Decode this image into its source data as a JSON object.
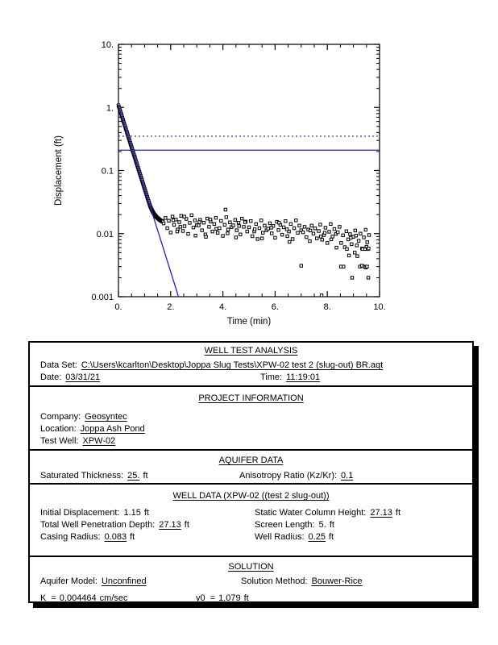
{
  "chart_data": {
    "type": "scatter",
    "title": "",
    "xlabel": "Time (min)",
    "ylabel": "Displacement (ft)",
    "x_range": [
      0,
      10
    ],
    "y_range": [
      0.001,
      10
    ],
    "y_scale": "log",
    "x_minor_step": 0.5,
    "x_ticks": [
      {
        "v": 0,
        "label": "0."
      },
      {
        "v": 2,
        "label": "2."
      },
      {
        "v": 4,
        "label": "4."
      },
      {
        "v": 6,
        "label": "6."
      },
      {
        "v": 8,
        "label": "8."
      },
      {
        "v": 10,
        "label": "10."
      }
    ],
    "y_ticks": [
      {
        "v": 10,
        "label": "10."
      },
      {
        "v": 1,
        "label": "1."
      },
      {
        "v": 0.1,
        "label": "0.1"
      },
      {
        "v": 0.01,
        "label": "0.01"
      },
      {
        "v": 0.001,
        "label": "0.001"
      }
    ],
    "line_color": "#2222cc",
    "marker": {
      "shape": "open-square",
      "color": "#000000",
      "size": 3.4
    },
    "ref_lines": [
      {
        "style": "dotted",
        "y": 0.35
      },
      {
        "style": "solid",
        "y": 0.21
      }
    ],
    "fit_line": {
      "name": "Bouwer-Rice",
      "y0": 1.079,
      "decades_per_min": 1.319
    },
    "points": [
      [
        0,
        1.08
      ],
      [
        0.017,
        1.025
      ],
      [
        0.033,
        0.975
      ],
      [
        0.05,
        0.928
      ],
      [
        0.067,
        0.88
      ],
      [
        0.083,
        0.838
      ],
      [
        0.1,
        0.796
      ],
      [
        0.117,
        0.757
      ],
      [
        0.133,
        0.72
      ],
      [
        0.15,
        0.684
      ],
      [
        0.167,
        0.65
      ],
      [
        0.183,
        0.619
      ],
      [
        0.2,
        0.588
      ],
      [
        0.217,
        0.559
      ],
      [
        0.233,
        0.532
      ],
      [
        0.25,
        0.505
      ],
      [
        0.267,
        0.479
      ],
      [
        0.283,
        0.456
      ],
      [
        0.3,
        0.434
      ],
      [
        0.317,
        0.413
      ],
      [
        0.333,
        0.393
      ],
      [
        0.35,
        0.373
      ],
      [
        0.367,
        0.354
      ],
      [
        0.383,
        0.337
      ],
      [
        0.4,
        0.32
      ],
      [
        0.417,
        0.305
      ],
      [
        0.433,
        0.29
      ],
      [
        0.45,
        0.275
      ],
      [
        0.467,
        0.261
      ],
      [
        0.483,
        0.248
      ],
      [
        0.5,
        0.236
      ],
      [
        0.517,
        0.225
      ],
      [
        0.533,
        0.214
      ],
      [
        0.55,
        0.203
      ],
      [
        0.567,
        0.193
      ],
      [
        0.583,
        0.183
      ],
      [
        0.6,
        0.174
      ],
      [
        0.617,
        0.166
      ],
      [
        0.633,
        0.158
      ],
      [
        0.65,
        0.15
      ],
      [
        0.667,
        0.142
      ],
      [
        0.683,
        0.135
      ],
      [
        0.7,
        0.129
      ],
      [
        0.717,
        0.122
      ],
      [
        0.733,
        0.116
      ],
      [
        0.75,
        0.11
      ],
      [
        0.767,
        0.105
      ],
      [
        0.783,
        0.1
      ],
      [
        0.8,
        0.095
      ],
      [
        0.817,
        0.0903
      ],
      [
        0.833,
        0.086
      ],
      [
        0.85,
        0.0817
      ],
      [
        0.867,
        0.0776
      ],
      [
        0.883,
        0.0738
      ],
      [
        0.9,
        0.0702
      ],
      [
        0.917,
        0.0667
      ],
      [
        0.933,
        0.0635
      ],
      [
        0.95,
        0.0603
      ],
      [
        0.967,
        0.0573
      ],
      [
        0.983,
        0.0545
      ],
      [
        1,
        0.0518
      ],
      [
        1.017,
        0.0493
      ],
      [
        1.033,
        0.0469
      ],
      [
        1.05,
        0.0445
      ],
      [
        1.067,
        0.0423
      ],
      [
        1.083,
        0.0403
      ],
      [
        1.1,
        0.0383
      ],
      [
        1.117,
        0.0364
      ],
      [
        1.133,
        0.0347
      ],
      [
        1.15,
        0.033
      ],
      [
        1.167,
        0.0313
      ],
      [
        1.183,
        0.0298
      ],
      [
        1.2,
        0.0284
      ],
      [
        1.217,
        0.0272
      ],
      [
        1.233,
        0.0262
      ],
      [
        1.25,
        0.0252
      ],
      [
        1.267,
        0.0243
      ],
      [
        1.283,
        0.0235
      ],
      [
        1.3,
        0.0228
      ],
      [
        1.317,
        0.0221
      ],
      [
        1.333,
        0.0215
      ],
      [
        1.35,
        0.0209
      ],
      [
        1.367,
        0.0204
      ],
      [
        1.383,
        0.02
      ],
      [
        1.4,
        0.0196
      ],
      [
        1.417,
        0.0192
      ],
      [
        1.433,
        0.0188
      ],
      [
        1.45,
        0.0185
      ],
      [
        1.467,
        0.0182
      ],
      [
        1.483,
        0.0179
      ],
      [
        1.5,
        0.0176
      ],
      [
        1.517,
        0.0174
      ],
      [
        1.533,
        0.0171
      ],
      [
        1.55,
        0.0169
      ],
      [
        1.567,
        0.0167
      ],
      [
        1.583,
        0.0165
      ],
      [
        1.6,
        0.0163
      ],
      [
        1.617,
        0.0161
      ],
      [
        1.633,
        0.016
      ],
      [
        1.65,
        0.0158
      ],
      [
        1.667,
        0.0157
      ],
      [
        1.683,
        0.0156
      ],
      [
        1.7,
        0.0155
      ],
      [
        1.73,
        0.0145
      ],
      [
        1.8,
        0.0177
      ],
      [
        1.87,
        0.0122
      ],
      [
        1.93,
        0.016
      ],
      [
        2,
        0.0104
      ],
      [
        2.07,
        0.0186
      ],
      [
        2.13,
        0.0138
      ],
      [
        2.2,
        0.0167
      ],
      [
        2.27,
        0.0116
      ],
      [
        2.33,
        0.0152
      ],
      [
        2.4,
        0.0191
      ],
      [
        2.47,
        0.011
      ],
      [
        2.53,
        0.0131
      ],
      [
        2.6,
        0.0171
      ],
      [
        2.67,
        0.0099
      ],
      [
        2.73,
        0.0148
      ],
      [
        2.8,
        0.0196
      ],
      [
        2.87,
        0.0125
      ],
      [
        2.93,
        0.0162
      ],
      [
        3,
        0.0136
      ],
      [
        3.07,
        0.0135
      ],
      [
        3.13,
        0.0165
      ],
      [
        3.2,
        0.0113
      ],
      [
        3.27,
        0.0149
      ],
      [
        3.33,
        0.0097
      ],
      [
        3.4,
        0.0173
      ],
      [
        3.47,
        0.0128
      ],
      [
        3.53,
        0.0155
      ],
      [
        3.6,
        0.0108
      ],
      [
        3.67,
        0.0142
      ],
      [
        3.73,
        0.0178
      ],
      [
        3.8,
        0.0103
      ],
      [
        3.87,
        0.0122
      ],
      [
        3.93,
        0.0159
      ],
      [
        4,
        0.0092
      ],
      [
        4.07,
        0.0138
      ],
      [
        4.13,
        0.0182
      ],
      [
        4.2,
        0.0116
      ],
      [
        4.27,
        0.0151
      ],
      [
        4.33,
        0.0127
      ],
      [
        4.4,
        0.0135
      ],
      [
        4.47,
        0.0165
      ],
      [
        4.53,
        0.0113
      ],
      [
        4.6,
        0.0149
      ],
      [
        4.67,
        0.0097
      ],
      [
        4.73,
        0.0173
      ],
      [
        4.8,
        0.0128
      ],
      [
        4.87,
        0.0155
      ],
      [
        4.93,
        0.0108
      ],
      [
        5,
        0.0126
      ],
      [
        5.07,
        0.0158
      ],
      [
        5.13,
        0.0091
      ],
      [
        5.2,
        0.0108
      ],
      [
        5.27,
        0.0142
      ],
      [
        5.33,
        0.0082
      ],
      [
        5.4,
        0.0122
      ],
      [
        5.47,
        0.0162
      ],
      [
        5.53,
        0.0103
      ],
      [
        5.6,
        0.0134
      ],
      [
        5.67,
        0.0113
      ],
      [
        5.73,
        0.012
      ],
      [
        5.8,
        0.0146
      ],
      [
        5.87,
        0.0101
      ],
      [
        5.93,
        0.0132
      ],
      [
        6,
        0.0086
      ],
      [
        6.07,
        0.0154
      ],
      [
        6.13,
        0.0114
      ],
      [
        6.2,
        0.0138
      ],
      [
        6.27,
        0.0096
      ],
      [
        6.33,
        0.0126
      ],
      [
        6.4,
        0.0158
      ],
      [
        6.47,
        0.0091
      ],
      [
        6.53,
        0.0108
      ],
      [
        6.6,
        0.0142
      ],
      [
        6.67,
        0.0082
      ],
      [
        6.73,
        0.0122
      ],
      [
        6.8,
        0.0162
      ],
      [
        6.87,
        0.0103
      ],
      [
        6.93,
        0.0134
      ],
      [
        7,
        0.0113
      ],
      [
        7.07,
        0.0105
      ],
      [
        7.13,
        0.0128
      ],
      [
        7.2,
        0.0088
      ],
      [
        7.27,
        0.0116
      ],
      [
        7.33,
        0.0076
      ],
      [
        7.4,
        0.0134
      ],
      [
        7.47,
        0.01
      ],
      [
        7.53,
        0.0121
      ],
      [
        7.6,
        0.0084
      ],
      [
        7.67,
        0.011
      ],
      [
        7.73,
        0.0139
      ],
      [
        7.8,
        0.008
      ],
      [
        7.87,
        0.0095
      ],
      [
        7.93,
        0.0124
      ],
      [
        8,
        0.0071
      ],
      [
        8.07,
        0.0107
      ],
      [
        8.13,
        0.0142
      ],
      [
        8.2,
        0.009
      ],
      [
        8.27,
        0.0118
      ],
      [
        8.33,
        0.0099
      ],
      [
        8.4,
        0.0105
      ],
      [
        8.47,
        0.0128
      ],
      [
        8.53,
        0.0071
      ],
      [
        8.6,
        0.0094
      ],
      [
        8.67,
        0.0061
      ],
      [
        8.73,
        0.0109
      ],
      [
        8.8,
        0.0081
      ],
      [
        8.87,
        0.0098
      ],
      [
        8.93,
        0.0068
      ],
      [
        9,
        0.0089
      ],
      [
        9.07,
        0.0112
      ],
      [
        9.13,
        0.0065
      ],
      [
        9.2,
        0.0077
      ],
      [
        9.27,
        0.01
      ],
      [
        9.33,
        0.0058
      ],
      [
        9.4,
        0.0087
      ],
      [
        9.47,
        0.0115
      ],
      [
        9.53,
        0.0073
      ],
      [
        9.6,
        0.0095
      ],
      [
        2.1,
        0.0163
      ],
      [
        2.25,
        0.0108
      ],
      [
        2.37,
        0.0128
      ],
      [
        2.52,
        0.0186
      ],
      [
        2.95,
        0.0093
      ],
      [
        3.1,
        0.0152
      ],
      [
        3.35,
        0.0089
      ],
      [
        3.52,
        0.0168
      ],
      [
        3.75,
        0.0119
      ],
      [
        4.1,
        0.024
      ],
      [
        4.18,
        0.0101
      ],
      [
        4.5,
        0.0087
      ],
      [
        4.62,
        0.0132
      ],
      [
        4.85,
        0.0152
      ],
      [
        5.22,
        0.0117
      ],
      [
        5.5,
        0.0084
      ],
      [
        5.85,
        0.0124
      ],
      [
        6.15,
        0.0149
      ],
      [
        6.45,
        0.0117
      ],
      [
        6.55,
        0.0074
      ],
      [
        7,
        0.0031
      ],
      [
        7.35,
        0.0112
      ],
      [
        7.75,
        0.009
      ],
      [
        7.78,
        0.00105
      ],
      [
        7.9,
        0.0103
      ],
      [
        8.15,
        0.0081
      ],
      [
        8.35,
        0.006
      ],
      [
        8.52,
        0.003
      ],
      [
        8.62,
        0.003
      ],
      [
        8.75,
        0.0057
      ],
      [
        8.83,
        0.0045
      ],
      [
        8.9,
        0.0086
      ],
      [
        8.95,
        0.002
      ],
      [
        9.05,
        0.005
      ],
      [
        9.1,
        0.0093
      ],
      [
        9.15,
        0.0044
      ],
      [
        9.25,
        0.003
      ],
      [
        9.33,
        0.0031
      ],
      [
        9.35,
        0.0057
      ],
      [
        9.42,
        0.003
      ],
      [
        9.45,
        0.0057
      ],
      [
        9.47,
        0.0029
      ],
      [
        9.5,
        0.0062
      ],
      [
        9.52,
        0.003
      ],
      [
        9.55,
        0.0057
      ],
      [
        9.57,
        0.002
      ],
      [
        9.58,
        0.0058
      ]
    ]
  },
  "table": {
    "s1": {
      "title": "WELL TEST ANALYSIS",
      "dataset_label": "Data Set:",
      "dataset_value": "C:\\Users\\kcarlton\\Desktop\\Joppa Slug Tests\\XPW-02 test 2 (slug-out) BR.aqt",
      "date_label": "Date:",
      "date_value": "03/31/21",
      "time_label": "Time:",
      "time_value": "11:19:01"
    },
    "s2": {
      "title": "PROJECT INFORMATION",
      "company_label": "Company:",
      "company_value": "Geosyntec",
      "location_label": "Location:",
      "location_value": "Joppa Ash Pond",
      "testwell_label": "Test Well:",
      "testwell_value": "XPW-02"
    },
    "s3": {
      "title": "AQUIFER DATA",
      "satthick_label": "Saturated Thickness:",
      "satthick_value": "25.",
      "satthick_suffix": "ft",
      "aniso_label": "Anisotropy Ratio (Kz/Kr):",
      "aniso_value": "0.1"
    },
    "s4": {
      "title": "WELL DATA (XPW-02 ((test 2 slug-out))",
      "initdisp_label": "Initial Displacement:",
      "initdisp_value": "1.15",
      "initdisp_suffix": "ft",
      "totaldepth_label": "Total Well Penetration Depth:",
      "totaldepth_value": "27.13",
      "totaldepth_suffix": "ft",
      "casing_label": "Casing Radius:",
      "casing_value": "0.083",
      "casing_suffix": "ft",
      "staticwc_label": "Static Water Column Height:",
      "staticwc_value": "27.13",
      "staticwc_suffix": "ft",
      "screen_label": "Screen Length:",
      "screen_value": "5.",
      "screen_suffix": "ft",
      "wellradius_label": "Well Radius:",
      "wellradius_value": "0.25",
      "wellradius_suffix": "ft"
    },
    "s5": {
      "title": "SOLUTION",
      "aqmodel_label": "Aquifer Model:",
      "aqmodel_value": "Unconfined",
      "method_label": "Solution Method:",
      "method_value": "Bouwer-Rice",
      "k_label": "K",
      "k_eq": "=",
      "k_value": "0.004464",
      "k_suffix": "cm/sec",
      "y0_label": "y0",
      "y0_eq": "=",
      "y0_value": "1.079",
      "y0_suffix": "ft"
    }
  }
}
